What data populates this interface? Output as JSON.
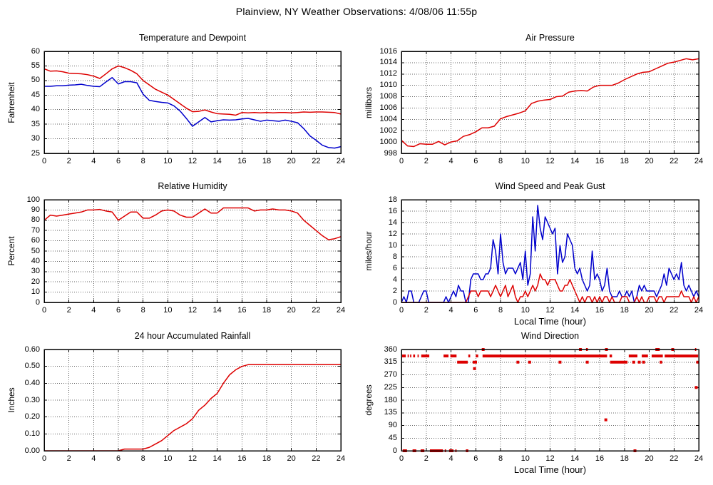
{
  "page_title": "Plainview, NY Weather Observations: 4/08/06 11:55p",
  "chart_data": "see charts",
  "charts": [
    {
      "id": "temperature-dewpoint",
      "type": "line",
      "title": "Temperature and Dewpoint",
      "ylabel": "Fahrenheit",
      "xlim": [
        0,
        24
      ],
      "xtick": 2,
      "ylim": [
        25,
        60
      ],
      "ytick": 5,
      "ydec": 0,
      "grid": true,
      "x_start": 0,
      "x_step": 0.5,
      "series": [
        {
          "name": "dewpoint",
          "color": "#0000cc",
          "values": [
            48,
            48,
            48.2,
            48.2,
            48.4,
            48.5,
            48.7,
            48.3,
            48,
            47.9,
            49.5,
            51,
            48.8,
            49.6,
            49.6,
            49.2,
            45.3,
            43.2,
            42.8,
            42.5,
            42.3,
            41.3,
            39.5,
            37,
            34.3,
            35.8,
            37.3,
            35.8,
            36.2,
            36.5,
            36.4,
            36.5,
            36.8,
            37,
            36.5,
            36,
            36.4,
            36.2,
            36,
            36.4,
            36,
            35.5,
            33.5,
            31,
            29.5,
            27.8,
            27,
            26.8,
            27.3
          ]
        },
        {
          "name": "temperature",
          "color": "#dd0000",
          "values": [
            54,
            53.2,
            53.3,
            53,
            52.5,
            52.4,
            52.3,
            52,
            51.5,
            50.7,
            52.3,
            54,
            55,
            54.4,
            53.5,
            52.3,
            50,
            48.5,
            47,
            46,
            45,
            43.5,
            42,
            40.5,
            39.3,
            39.4,
            39.9,
            39.2,
            38.6,
            38.5,
            38.4,
            38.1,
            39,
            38.9,
            39,
            38.9,
            39,
            38.9,
            39,
            39,
            38.9,
            39,
            39.2,
            39.1,
            39.2,
            39.2,
            39.1,
            39,
            38.5
          ]
        }
      ]
    },
    {
      "id": "air-pressure",
      "type": "line",
      "title": "Air Pressure",
      "ylabel": "millibars",
      "xlim": [
        0,
        24
      ],
      "xtick": 2,
      "ylim": [
        998,
        1016
      ],
      "ytick": 2,
      "ydec": 0,
      "grid": true,
      "x_start": 0,
      "x_step": 0.5,
      "series": [
        {
          "name": "pressure",
          "color": "#dd0000",
          "values": [
            1000.3,
            999.3,
            999.2,
            999.7,
            999.6,
            999.6,
            1000.1,
            999.5,
            1000,
            1000.2,
            1001,
            1001.3,
            1001.8,
            1002.5,
            1002.5,
            1002.8,
            1004.1,
            1004.5,
            1004.8,
            1005.1,
            1005.5,
            1006.8,
            1007.2,
            1007.4,
            1007.5,
            1008,
            1008.1,
            1008.8,
            1009,
            1009.1,
            1009,
            1009.7,
            1010,
            1010,
            1010,
            1010.4,
            1011,
            1011.5,
            1012,
            1012.3,
            1012.4,
            1012.9,
            1013.4,
            1013.9,
            1014.1,
            1014.4,
            1014.7,
            1014.5,
            1014.7
          ]
        }
      ]
    },
    {
      "id": "relative-humidity",
      "type": "line",
      "title": "Relative Humidity",
      "ylabel": "Percent",
      "xlim": [
        0,
        24
      ],
      "xtick": 2,
      "ylim": [
        0,
        100
      ],
      "ytick": 10,
      "ydec": 0,
      "grid": true,
      "x_start": 0,
      "x_step": 0.5,
      "series": [
        {
          "name": "humidity",
          "color": "#dd0000",
          "values": [
            80,
            85,
            84,
            85,
            86,
            87,
            88,
            90,
            90,
            90.5,
            89,
            88,
            80,
            84,
            88,
            88,
            82,
            82,
            85,
            89,
            90,
            89,
            85,
            83,
            83,
            87,
            91,
            87,
            87,
            92,
            92,
            92,
            92,
            92,
            89,
            90,
            90,
            91,
            90,
            90,
            89,
            87,
            80,
            75,
            70,
            65,
            61,
            62,
            64
          ]
        }
      ]
    },
    {
      "id": "wind-speed-gust",
      "type": "line",
      "title": "Wind Speed and Peak Gust",
      "ylabel": "miles/hour",
      "xlabel": "Local Time (hour)",
      "xlim": [
        0,
        24
      ],
      "xtick": 2,
      "ylim": [
        0,
        18
      ],
      "ytick": 2,
      "ydec": 0,
      "grid": true,
      "x_start": 0,
      "x_step": 0.2,
      "series": [
        {
          "name": "peak-gust",
          "color": "#0000cc",
          "values": [
            0,
            1,
            0,
            2,
            2,
            0,
            0,
            0,
            1,
            2,
            2,
            0,
            0,
            0,
            0,
            0,
            0,
            0,
            1,
            0,
            1,
            2,
            1,
            3,
            2,
            2,
            0,
            0,
            4,
            5,
            5,
            5,
            4,
            4,
            5,
            5,
            6,
            11,
            9,
            5,
            12,
            7,
            5,
            6,
            6,
            6,
            5,
            6,
            7,
            4,
            9,
            3,
            5,
            15,
            9,
            17,
            13,
            11,
            15,
            14,
            13,
            12,
            13,
            5,
            10,
            7,
            8,
            12,
            11,
            10,
            6,
            5,
            6,
            4,
            3,
            2,
            3,
            9,
            4,
            5,
            4,
            2,
            3,
            6,
            2,
            1,
            1,
            1,
            2,
            1,
            1,
            2,
            1,
            2,
            0,
            1,
            3,
            2,
            3,
            2,
            2,
            2,
            2,
            1,
            2,
            3,
            5,
            3,
            6,
            5,
            4,
            5,
            4,
            7,
            3,
            2,
            3,
            2,
            1,
            2,
            1
          ]
        },
        {
          "name": "wind-speed",
          "color": "#dd0000",
          "values": [
            0,
            0,
            0,
            0,
            0,
            0,
            0,
            0,
            0,
            0,
            0,
            0,
            0,
            0,
            0,
            0,
            0,
            0,
            0,
            0,
            0,
            0,
            0,
            0,
            0,
            0,
            0,
            1,
            2,
            2,
            2,
            1,
            2,
            2,
            2,
            2,
            1,
            2,
            3,
            2,
            1,
            2,
            3,
            1,
            2,
            3,
            1,
            0,
            1,
            1,
            2,
            1,
            2,
            3,
            2,
            3,
            5,
            4,
            4,
            3,
            4,
            4,
            4,
            3,
            2,
            2,
            3,
            3,
            4,
            3,
            2,
            1,
            0,
            1,
            0,
            1,
            1,
            0,
            1,
            0,
            1,
            0,
            1,
            1,
            0,
            1,
            0,
            0,
            0,
            1,
            1,
            1,
            0,
            0,
            0,
            1,
            0,
            1,
            0,
            0,
            1,
            1,
            1,
            0,
            1,
            1,
            0,
            1,
            1,
            1,
            1,
            1,
            1,
            2,
            1,
            1,
            1,
            0,
            1,
            0,
            1
          ]
        }
      ]
    },
    {
      "id": "accumulated-rainfall",
      "type": "line",
      "title": "24 hour Accumulated Rainfall",
      "ylabel": "Inches",
      "xlim": [
        0,
        24
      ],
      "xtick": 2,
      "ylim": [
        0,
        0.6
      ],
      "ytick": 0.1,
      "ydec": 2,
      "grid": true,
      "x_start": 0,
      "x_step": 0.5,
      "series": [
        {
          "name": "rainfall",
          "color": "#dd0000",
          "values": [
            0,
            0,
            0,
            0,
            0,
            0,
            0,
            0,
            0,
            0,
            0,
            0,
            0,
            0.01,
            0.01,
            0.01,
            0.01,
            0.02,
            0.04,
            0.06,
            0.09,
            0.12,
            0.14,
            0.16,
            0.19,
            0.24,
            0.27,
            0.31,
            0.34,
            0.4,
            0.45,
            0.48,
            0.5,
            0.51,
            0.51,
            0.51,
            0.51,
            0.51,
            0.51,
            0.51,
            0.51,
            0.51,
            0.51,
            0.51,
            0.51,
            0.51,
            0.51,
            0.51,
            0.51
          ]
        }
      ]
    },
    {
      "id": "wind-direction",
      "type": "scatter",
      "title": "Wind Direction",
      "ylabel": "degrees",
      "xlabel": "Local Time (hour)",
      "xlim": [
        0,
        24
      ],
      "xtick": 2,
      "ylim": [
        0,
        360
      ],
      "ytick": 45,
      "ydec": 0,
      "grid": true,
      "color": "#dd0000",
      "runs": [
        {
          "y": 337,
          "spans": [
            [
              0.05,
              0.35
            ],
            [
              0.5,
              0.6
            ],
            [
              0.7,
              0.8
            ],
            [
              0.95,
              1.1
            ],
            [
              1.3,
              1.4
            ],
            [
              1.6,
              2.25
            ],
            [
              3.4,
              3.8
            ],
            [
              3.95,
              4.45
            ],
            [
              5.4,
              5.55
            ],
            [
              6.0,
              6.2
            ],
            [
              6.55,
              16.6
            ],
            [
              16.8,
              17.0
            ],
            [
              18.35,
              19.05
            ],
            [
              19.4,
              19.9
            ],
            [
              20.2,
              21.1
            ],
            [
              21.25,
              23.95
            ]
          ]
        },
        {
          "y": 315,
          "spans": [
            [
              4.5,
              5.35
            ],
            [
              5.75,
              6.1
            ],
            [
              16.85,
              18.25
            ],
            [
              20.85,
              21.05
            ],
            [
              23.8,
              24.0
            ]
          ]
        },
        {
          "y": 360,
          "spans": [
            [
              14.9,
              15.05
            ],
            [
              20.5,
              20.85
            ],
            [
              23.7,
              23.8
            ]
          ]
        },
        {
          "y": 0,
          "spans": [
            [
              0.1,
              0.45
            ],
            [
              0.9,
              1.2
            ],
            [
              1.55,
              1.85
            ],
            [
              2.3,
              3.35
            ],
            [
              3.5,
              3.6
            ],
            [
              3.85,
              4.2
            ],
            [
              4.35,
              4.45
            ],
            [
              5.2,
              5.4
            ]
          ]
        }
      ],
      "points": [
        [
          6.6,
          360
        ],
        [
          14.45,
          360
        ],
        [
          16.55,
          360
        ],
        [
          21.9,
          360
        ],
        [
          9.4,
          315
        ],
        [
          10.35,
          315
        ],
        [
          12.8,
          315
        ],
        [
          15.0,
          315
        ],
        [
          18.75,
          315
        ],
        [
          19.2,
          315
        ],
        [
          19.55,
          315
        ],
        [
          5.9,
          292
        ],
        [
          16.5,
          110
        ],
        [
          23.8,
          225
        ],
        [
          18.85,
          0
        ]
      ]
    }
  ]
}
